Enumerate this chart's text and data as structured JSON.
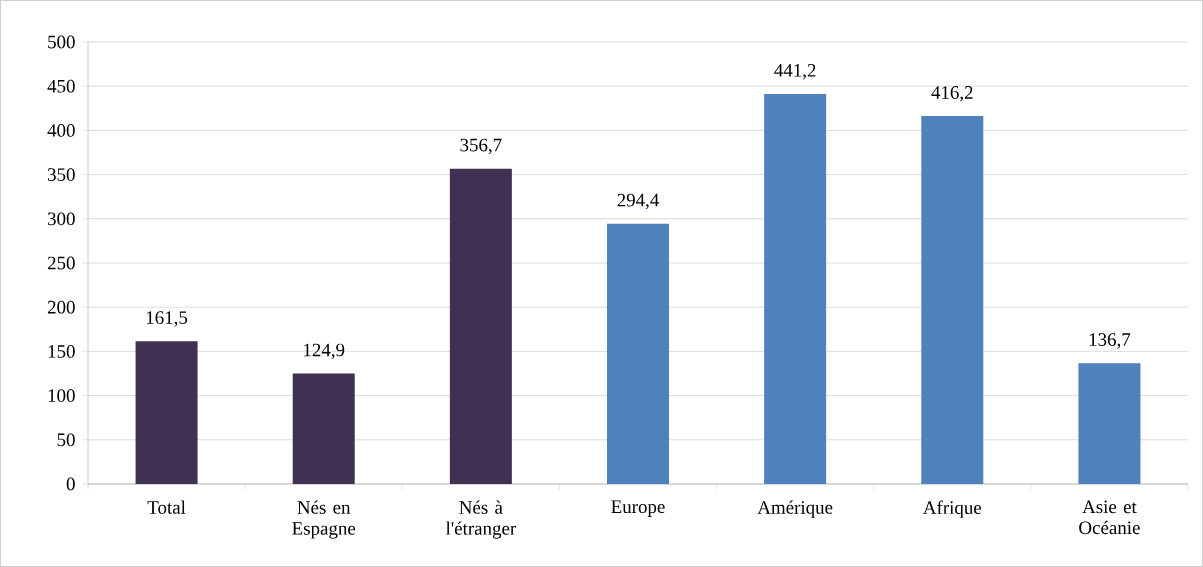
{
  "chart_data": {
    "type": "bar",
    "categories": [
      "Total",
      "Nés en Espagne",
      "Nés à l'étranger",
      "Europe",
      "Amérique",
      "Afrique",
      "Asie et Océanie"
    ],
    "values": [
      161.5,
      124.9,
      356.7,
      294.4,
      441.2,
      416.2,
      136.7
    ],
    "value_labels": [
      "161,5",
      "124,9",
      "356,7",
      "294,4",
      "441,2",
      "416,2",
      "136,7"
    ],
    "colors": [
      "#403152",
      "#403152",
      "#403152",
      "#4f81bd",
      "#4f81bd",
      "#4f81bd",
      "#4f81bd"
    ],
    "ylim": [
      0,
      500
    ],
    "yticks": [
      0,
      50,
      100,
      150,
      200,
      250,
      300,
      350,
      400,
      450,
      500
    ],
    "grid": "y"
  }
}
